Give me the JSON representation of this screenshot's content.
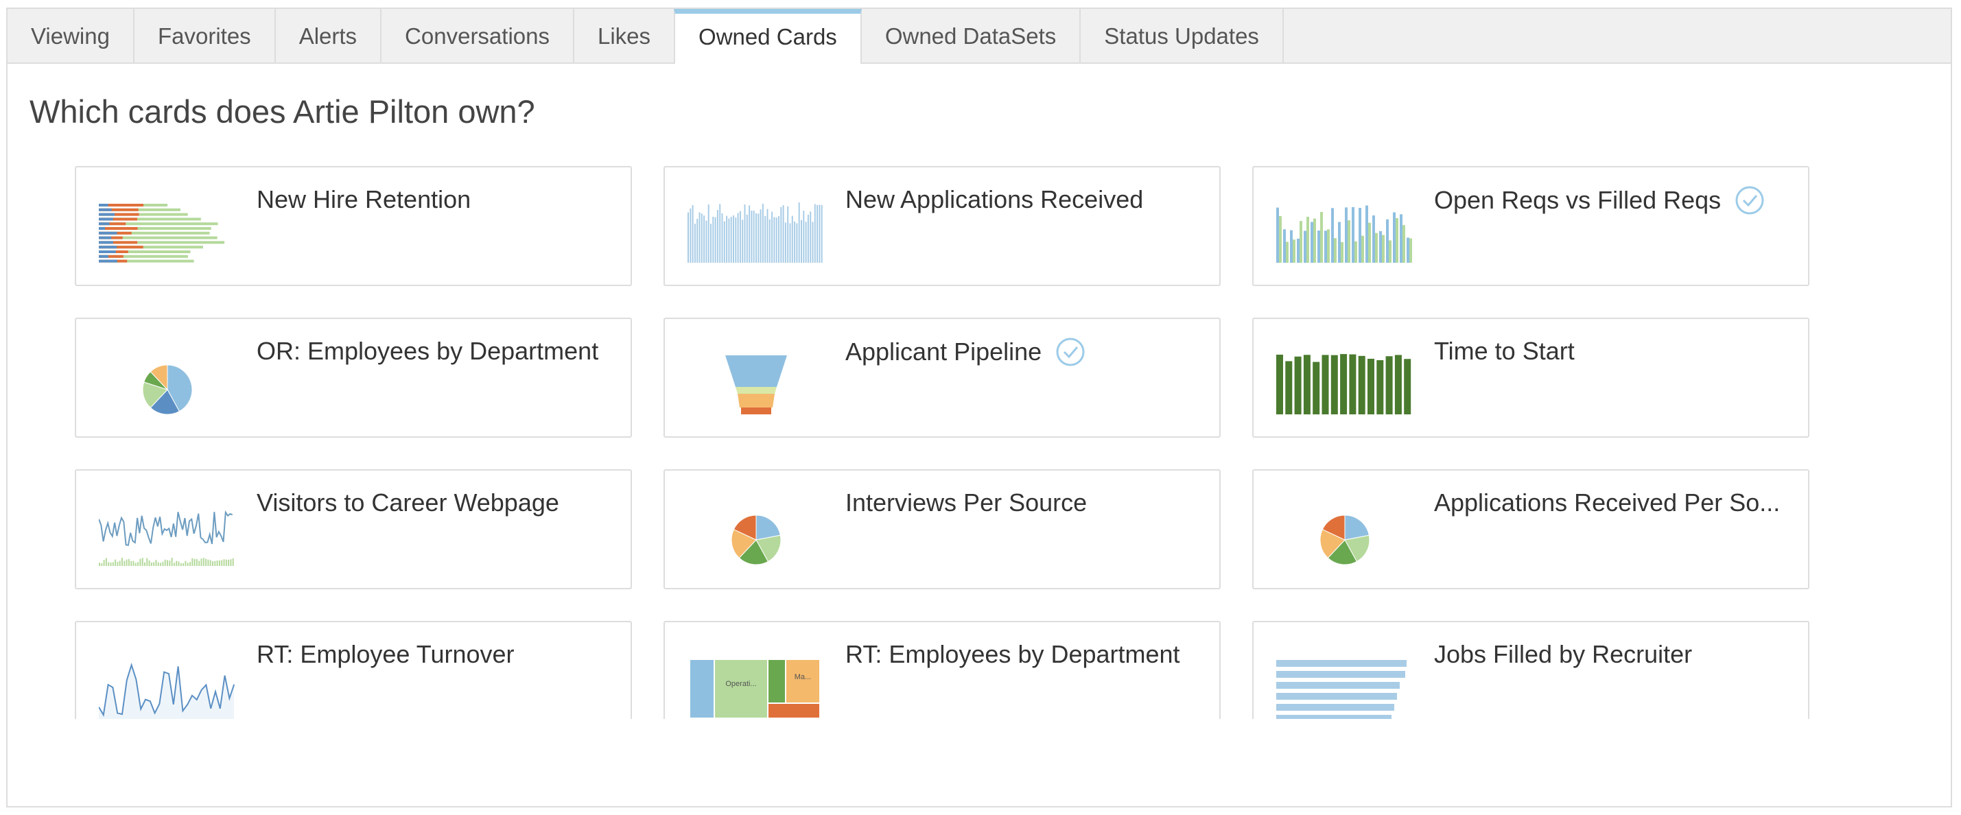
{
  "tabs": [
    "Viewing",
    "Favorites",
    "Alerts",
    "Conversations",
    "Likes",
    "Owned Cards",
    "Owned DataSets",
    "Status Updates"
  ],
  "heading": "Which cards does Artie Pilton own?",
  "cards": [
    {
      "title": "New Hire Retention"
    },
    {
      "title": "New Applications Received"
    },
    {
      "title": "Open Reqs vs Filled Reqs"
    },
    {
      "title": "OR: Employees by Department"
    },
    {
      "title": "Applicant Pipeline"
    },
    {
      "title": "Time to Start"
    },
    {
      "title": "Visitors to Career Webpage"
    },
    {
      "title": "Interviews Per Source"
    },
    {
      "title": "Applications Received Per So..."
    },
    {
      "title": "RT: Employee Turnover"
    },
    {
      "title": "RT: Employees by Department",
      "thumbnail_labels": [
        "Operati...",
        "Ma..."
      ]
    },
    {
      "title": "Jobs Filled by Recruiter"
    }
  ]
}
